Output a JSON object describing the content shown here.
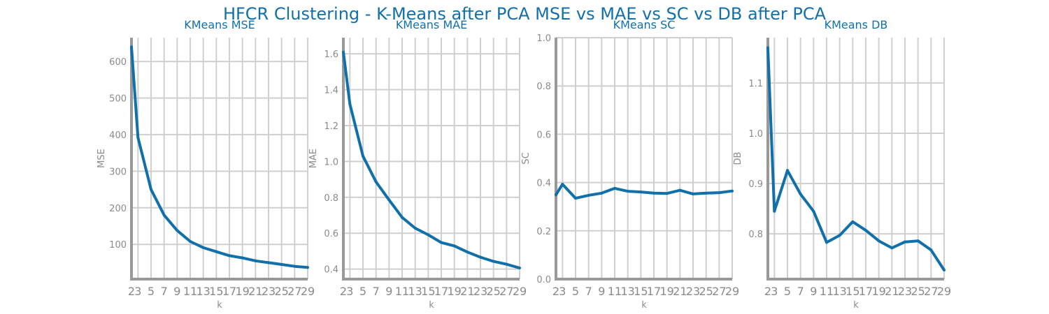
{
  "figure": {
    "title": "HFCR Clustering - K-Means after PCA MSE vs MAE vs SC vs DB after PCA",
    "line_color": "#1170aa"
  },
  "chart_data": [
    {
      "type": "line",
      "title": "KMeans MSE",
      "xlabel": "k",
      "ylabel": "MSE",
      "x": [
        2,
        3,
        5,
        7,
        9,
        11,
        13,
        15,
        17,
        19,
        21,
        23,
        25,
        27,
        29
      ],
      "xticks": [
        2,
        3,
        5,
        7,
        9,
        11,
        13,
        15,
        17,
        19,
        21,
        23,
        25,
        27,
        29
      ],
      "xlim": [
        2,
        29
      ],
      "ylim": [
        5,
        665
      ],
      "yticks": [
        100,
        200,
        300,
        400,
        500,
        600
      ],
      "ytick_labels": [
        "100",
        "200",
        "300",
        "400",
        "500",
        "600"
      ],
      "grid": true,
      "series": [
        {
          "values": [
            640,
            392,
            250,
            180,
            138,
            108,
            91,
            80,
            69,
            63,
            55,
            50,
            45,
            40,
            37
          ]
        }
      ]
    },
    {
      "type": "line",
      "title": "KMeans MAE",
      "xlabel": "k",
      "ylabel": "MAE",
      "x": [
        2,
        3,
        5,
        7,
        9,
        11,
        13,
        15,
        17,
        19,
        21,
        23,
        25,
        27,
        29
      ],
      "xticks": [
        2,
        3,
        5,
        7,
        9,
        11,
        13,
        15,
        17,
        19,
        21,
        23,
        25,
        27,
        29
      ],
      "xlim": [
        2,
        29
      ],
      "ylim": [
        0.344,
        1.69
      ],
      "yticks": [
        0.4,
        0.6,
        0.8,
        1.0,
        1.2,
        1.4,
        1.6
      ],
      "ytick_labels": [
        "0.4",
        "0.6",
        "0.8",
        "1.0",
        "1.2",
        "1.4",
        "1.6"
      ],
      "grid": true,
      "series": [
        {
          "values": [
            1.61,
            1.32,
            1.03,
            0.886,
            0.786,
            0.688,
            0.628,
            0.591,
            0.548,
            0.529,
            0.495,
            0.466,
            0.443,
            0.427,
            0.406
          ]
        }
      ]
    },
    {
      "type": "line",
      "title": "KMeans SC",
      "xlabel": "k",
      "ylabel": "SC",
      "x": [
        2,
        3,
        5,
        7,
        9,
        11,
        13,
        15,
        17,
        19,
        21,
        23,
        25,
        27,
        29
      ],
      "xticks": [
        2,
        3,
        5,
        7,
        9,
        11,
        13,
        15,
        17,
        19,
        21,
        23,
        25,
        27,
        29
      ],
      "xlim": [
        2,
        29
      ],
      "ylim": [
        0,
        1.0
      ],
      "yticks": [
        0.0,
        0.2,
        0.4,
        0.6,
        0.8,
        1.0
      ],
      "ytick_labels": [
        "0.0",
        "0.2",
        "0.4",
        "0.6",
        "0.8",
        "1.0"
      ],
      "grid": true,
      "series": [
        {
          "values": [
            0.349,
            0.393,
            0.335,
            0.347,
            0.356,
            0.376,
            0.364,
            0.361,
            0.356,
            0.355,
            0.368,
            0.353,
            0.356,
            0.358,
            0.365
          ]
        }
      ]
    },
    {
      "type": "line",
      "title": "KMeans DB",
      "xlabel": "k",
      "ylabel": "DB",
      "x": [
        2,
        3,
        5,
        7,
        9,
        11,
        13,
        15,
        17,
        19,
        21,
        23,
        25,
        27,
        29
      ],
      "xticks": [
        2,
        3,
        5,
        7,
        9,
        11,
        13,
        15,
        17,
        19,
        21,
        23,
        25,
        27,
        29
      ],
      "xlim": [
        2,
        29
      ],
      "ylim": [
        0.71,
        1.19
      ],
      "yticks": [
        0.8,
        0.9,
        1.0,
        1.1
      ],
      "ytick_labels": [
        "0.8",
        "0.9",
        "1.0",
        "1.1"
      ],
      "grid": true,
      "series": [
        {
          "values": [
            1.17,
            0.845,
            0.926,
            0.879,
            0.845,
            0.783,
            0.797,
            0.824,
            0.807,
            0.786,
            0.772,
            0.784,
            0.786,
            0.768,
            0.728
          ]
        }
      ]
    }
  ]
}
